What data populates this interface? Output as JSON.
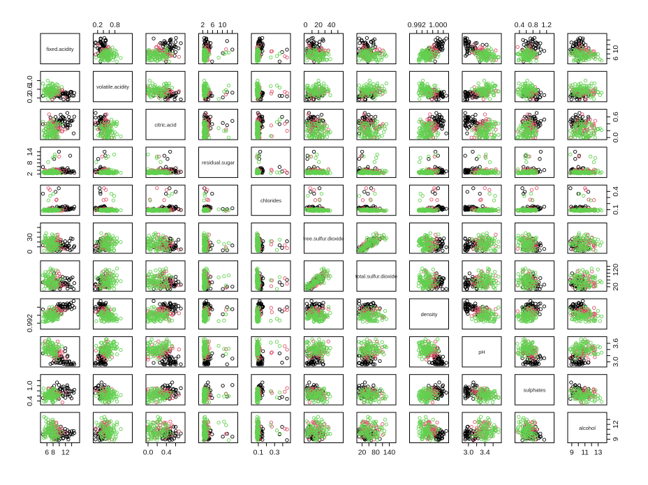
{
  "chart_data": {
    "type": "scatter",
    "subtype": "scatterplot-matrix",
    "title": "",
    "variables": [
      {
        "name": "fixed.acidity",
        "range": [
          4.6,
          15.9
        ]
      },
      {
        "name": "volatile.acidity",
        "range": [
          0.12,
          1.33
        ]
      },
      {
        "name": "citric.acid",
        "range": [
          0.0,
          0.76
        ]
      },
      {
        "name": "residual.sugar",
        "range": [
          1.2,
          15.4
        ]
      },
      {
        "name": "chlorides",
        "range": [
          0.04,
          0.47
        ]
      },
      {
        "name": "free.sulfur.dioxide",
        "range": [
          1,
          55
        ]
      },
      {
        "name": "total.sulfur.dioxide",
        "range": [
          6,
          160
        ]
      },
      {
        "name": "density",
        "range": [
          0.9901,
          1.0032
        ]
      },
      {
        "name": "pH",
        "range": [
          2.9,
          3.75
        ]
      },
      {
        "name": "sulphates",
        "range": [
          0.33,
          1.36
        ]
      },
      {
        "name": "alcohol",
        "range": [
          8.7,
          14.0
        ]
      }
    ],
    "ticks": {
      "top": [
        {
          "var": 1,
          "labels": [
            "0.2",
            "0.8"
          ],
          "values": [
            0.2,
            0.8
          ],
          "minor": [
            0.4,
            0.6
          ]
        },
        {
          "var": 3,
          "labels": [
            "2",
            "6",
            "10"
          ],
          "values": [
            2,
            6,
            10
          ],
          "minor": [
            4,
            8,
            12,
            14
          ]
        },
        {
          "var": 5,
          "labels": [
            "0",
            "20",
            "40"
          ],
          "values": [
            0,
            20,
            40
          ],
          "minor": [
            10,
            30,
            50
          ]
        },
        {
          "var": 7,
          "labels": [
            "0.992",
            "1.000"
          ],
          "values": [
            0.992,
            1.0
          ],
          "minor": [
            0.994,
            0.996,
            0.998,
            1.002
          ]
        },
        {
          "var": 9,
          "labels": [
            "0.4",
            "0.8",
            "1.2"
          ],
          "values": [
            0.4,
            0.8,
            1.2
          ],
          "minor": [
            0.6,
            1.0
          ]
        }
      ],
      "bottom": [
        {
          "var": 0,
          "labels": [
            "6",
            "8",
            "12"
          ],
          "values": [
            6,
            8,
            12
          ],
          "minor": [
            10,
            14
          ]
        },
        {
          "var": 2,
          "labels": [
            "0.0",
            "0.4"
          ],
          "values": [
            0.0,
            0.4
          ],
          "minor": [
            0.2,
            0.6
          ]
        },
        {
          "var": 4,
          "labels": [
            "0.1",
            "0.3"
          ],
          "values": [
            0.1,
            0.3
          ],
          "minor": [
            0.2,
            0.4
          ]
        },
        {
          "var": 6,
          "labels": [
            "20",
            "80",
            "140"
          ],
          "values": [
            20,
            80,
            140
          ],
          "minor": [
            50,
            110
          ]
        },
        {
          "var": 8,
          "labels": [
            "3.0",
            "3.4"
          ],
          "values": [
            3.0,
            3.4
          ],
          "minor": [
            3.2,
            3.6
          ]
        },
        {
          "var": 10,
          "labels": [
            "9",
            "11",
            "13"
          ],
          "values": [
            9,
            11,
            13
          ],
          "minor": [
            10,
            12
          ]
        }
      ],
      "left": [
        {
          "var": 1,
          "labels": [
            "0.2",
            "0.6",
            "1.0"
          ],
          "values": [
            0.2,
            0.6,
            1.0
          ]
        },
        {
          "var": 3,
          "labels": [
            "2",
            "8",
            "14"
          ],
          "values": [
            2,
            8,
            14
          ],
          "minor": [
            4,
            6,
            10,
            12
          ]
        },
        {
          "var": 5,
          "labels": [
            "0",
            "30"
          ],
          "values": [
            0,
            30
          ],
          "minor": [
            10,
            20,
            40,
            50
          ]
        },
        {
          "var": 7,
          "labels": [
            "0.992"
          ],
          "values": [
            0.992
          ],
          "minor": [
            0.996,
            1.0
          ]
        },
        {
          "var": 9,
          "labels": [
            "0.4",
            "1.0"
          ],
          "values": [
            0.4,
            1.0
          ],
          "minor": [
            0.6,
            0.8,
            1.2
          ]
        }
      ],
      "right": [
        {
          "var": 0,
          "labels": [
            "6",
            "10"
          ],
          "values": [
            6,
            10
          ],
          "minor": [
            8,
            12,
            14
          ]
        },
        {
          "var": 2,
          "labels": [
            "0.0",
            "0.6"
          ],
          "values": [
            0.0,
            0.6
          ],
          "minor": [
            0.2,
            0.4
          ]
        },
        {
          "var": 4,
          "labels": [
            "0.1",
            "0.4"
          ],
          "values": [
            0.1,
            0.4
          ],
          "minor": [
            0.2,
            0.3
          ]
        },
        {
          "var": 6,
          "labels": [
            "20",
            "120"
          ],
          "values": [
            20,
            120
          ],
          "minor": [
            40,
            60,
            80,
            100,
            140
          ]
        },
        {
          "var": 8,
          "labels": [
            "3.0",
            "3.6"
          ],
          "values": [
            3.0,
            3.6
          ],
          "minor": [
            3.2,
            3.4
          ]
        },
        {
          "var": 10,
          "labels": [
            "9",
            "12"
          ],
          "values": [
            9,
            12
          ],
          "minor": [
            10,
            11,
            13
          ]
        }
      ]
    },
    "groups": [
      {
        "color": "#000000"
      },
      {
        "color": "#DF536B"
      },
      {
        "color": "#61D04F"
      }
    ],
    "points_per_group": [
      45,
      45,
      80
    ],
    "grid": false,
    "legend": "none"
  }
}
